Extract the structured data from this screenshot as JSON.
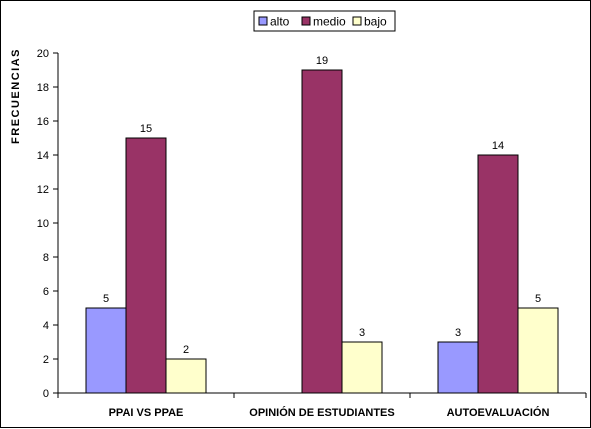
{
  "chart_data": {
    "type": "bar",
    "title": "",
    "xlabel": "",
    "ylabel": "FRECUENCIAS",
    "ylim": [
      0,
      20
    ],
    "ytick_step": 2,
    "grid": false,
    "legend_position": "top-center",
    "categories": [
      "PPAI VS PPAE",
      "OPINIÓN DE ESTUDIANTES",
      "AUTOEVALUACIÓN"
    ],
    "series": [
      {
        "name": "alto",
        "color": "#9999ff",
        "values": [
          5,
          null,
          3
        ]
      },
      {
        "name": "medio",
        "color": "#993366",
        "values": [
          15,
          19,
          14
        ]
      },
      {
        "name": "bajo",
        "color": "#ffffcc",
        "values": [
          2,
          3,
          5
        ]
      }
    ]
  }
}
